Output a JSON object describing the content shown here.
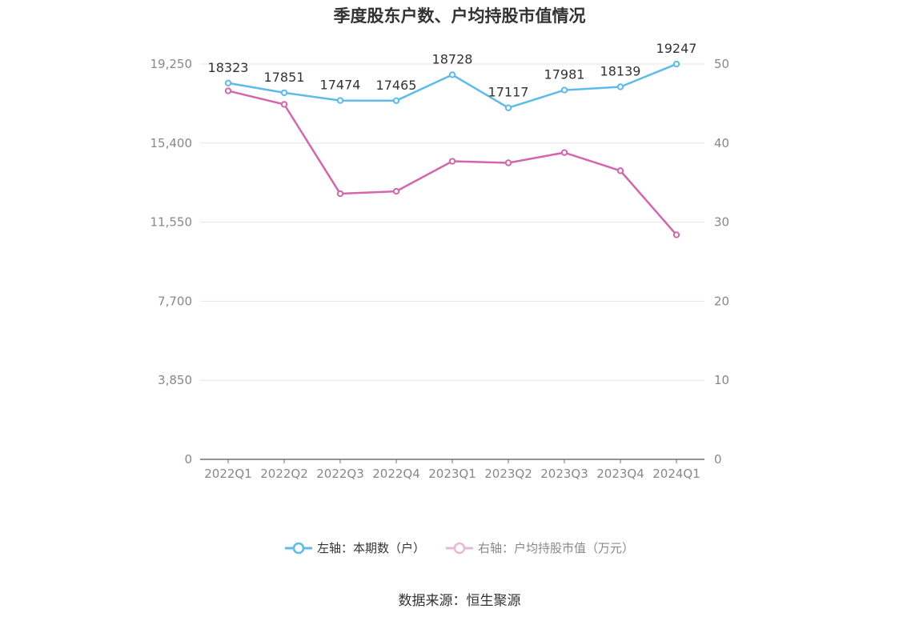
{
  "chart_data": {
    "type": "line",
    "title": "季度股东户数、户均持股市值情况",
    "categories": [
      "2022Q1",
      "2022Q2",
      "2022Q3",
      "2022Q4",
      "2023Q1",
      "2023Q2",
      "2023Q3",
      "2023Q4",
      "2024Q1"
    ],
    "series": [
      {
        "name": "左轴：本期数（户）",
        "axis": "left",
        "color": "#5bbcec",
        "values": [
          18323,
          17851,
          17474,
          17465,
          18728,
          17117,
          17981,
          18139,
          19247
        ],
        "labels": [
          "18323",
          "17851",
          "17474",
          "17465",
          "18728",
          "17117",
          "17981",
          "18139",
          "19247"
        ]
      },
      {
        "name": "右轴：户均持股市值（万元）",
        "axis": "right",
        "color": "#d466ac",
        "values": [
          46.6,
          44.9,
          33.6,
          33.9,
          37.7,
          37.5,
          38.8,
          36.5,
          28.4
        ]
      }
    ],
    "left_axis": {
      "ticks": [
        "0",
        "3,850",
        "7,700",
        "11,550",
        "15,400",
        "19,250"
      ],
      "ylim": [
        0,
        19250
      ]
    },
    "right_axis": {
      "ticks": [
        "0",
        "10",
        "20",
        "30",
        "40",
        "50"
      ],
      "ylim": [
        0,
        50
      ]
    },
    "grid": true,
    "legend_position": "bottom"
  },
  "source": "数据来源：恒生聚源"
}
